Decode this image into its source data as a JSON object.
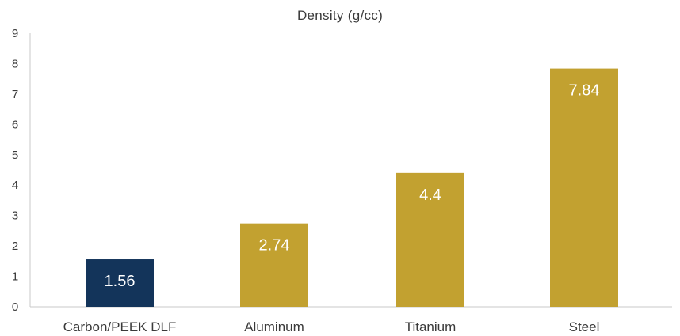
{
  "chart_data": {
    "type": "bar",
    "title": "Density (g/cc)",
    "xlabel": "",
    "ylabel": "",
    "categories": [
      "Carbon/PEEK DLF",
      "Aluminum",
      "Titanium",
      "Steel"
    ],
    "values": [
      1.56,
      2.74,
      4.4,
      7.84
    ],
    "data_labels": [
      "1.56",
      "2.74",
      "4.4",
      "7.84"
    ],
    "bar_colors": [
      "#13345a",
      "#c2a130",
      "#c2a130",
      "#c2a130"
    ],
    "ylim": [
      0,
      9
    ],
    "yticks": [
      "0",
      "1",
      "2",
      "3",
      "4",
      "5",
      "6",
      "7",
      "8",
      "9"
    ],
    "grid": false,
    "legend": "none"
  },
  "colors": {
    "axis": "#c8c8c8",
    "text": "#3a3a3a",
    "data_label": "#ffffff"
  }
}
